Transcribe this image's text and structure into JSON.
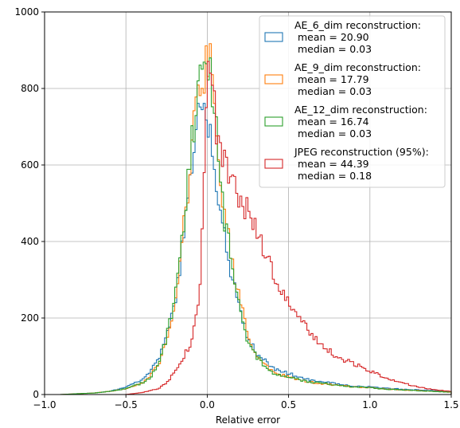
{
  "chart_data": {
    "type": "histogram",
    "xlabel": "Relative error",
    "ylabel": "",
    "title": "",
    "xlim": [
      -1.0,
      1.5
    ],
    "ylim": [
      0,
      1000
    ],
    "x_ticks": [
      -1.0,
      -0.5,
      0.0,
      0.5,
      1.0,
      1.5
    ],
    "x_tick_labels": [
      "−1.0",
      "−0.5",
      "0.0",
      "0.5",
      "1.0",
      "1.5"
    ],
    "y_ticks": [
      0,
      200,
      400,
      600,
      800,
      1000
    ],
    "y_tick_labels": [
      "0",
      "200",
      "400",
      "600",
      "800",
      "1000"
    ],
    "grid": true,
    "legend_position": "top-right",
    "legend": [
      {
        "title": "AE_6_dim reconstruction:",
        "mean": " mean = 20.90",
        "median": " median = 0.03"
      },
      {
        "title": "AE_9_dim reconstruction:",
        "mean": " mean = 17.79",
        "median": " median = 0.03"
      },
      {
        "title": "AE_12_dim reconstruction:",
        "mean": " mean = 16.74",
        "median": " median = 0.03"
      },
      {
        "title": "JPEG reconstruction (95%):",
        "mean": " mean = 44.39",
        "median": " median = 0.18"
      }
    ],
    "series": [
      {
        "color": "#1f77b4",
        "points": [
          [
            -0.9,
            0
          ],
          [
            -0.8,
            2
          ],
          [
            -0.7,
            4
          ],
          [
            -0.6,
            8
          ],
          [
            -0.5,
            20
          ],
          [
            -0.4,
            40
          ],
          [
            -0.35,
            60
          ],
          [
            -0.3,
            90
          ],
          [
            -0.25,
            150
          ],
          [
            -0.2,
            230
          ],
          [
            -0.15,
            400
          ],
          [
            -0.12,
            490
          ],
          [
            -0.1,
            560
          ],
          [
            -0.08,
            640
          ],
          [
            -0.06,
            740
          ],
          [
            -0.03,
            745
          ],
          [
            0.0,
            700
          ],
          [
            0.02,
            690
          ],
          [
            0.04,
            620
          ],
          [
            0.06,
            560
          ],
          [
            0.08,
            500
          ],
          [
            0.1,
            420
          ],
          [
            0.15,
            300
          ],
          [
            0.2,
            230
          ],
          [
            0.25,
            150
          ],
          [
            0.3,
            110
          ],
          [
            0.35,
            90
          ],
          [
            0.4,
            70
          ],
          [
            0.5,
            55
          ],
          [
            0.6,
            40
          ],
          [
            0.7,
            35
          ],
          [
            0.8,
            28
          ],
          [
            0.9,
            22
          ],
          [
            1.0,
            20
          ],
          [
            1.1,
            16
          ],
          [
            1.2,
            14
          ],
          [
            1.3,
            12
          ],
          [
            1.4,
            10
          ],
          [
            1.5,
            8
          ]
        ]
      },
      {
        "color": "#ff7f0e",
        "points": [
          [
            -0.9,
            0
          ],
          [
            -0.8,
            2
          ],
          [
            -0.7,
            4
          ],
          [
            -0.6,
            8
          ],
          [
            -0.5,
            15
          ],
          [
            -0.4,
            30
          ],
          [
            -0.35,
            50
          ],
          [
            -0.3,
            80
          ],
          [
            -0.25,
            140
          ],
          [
            -0.2,
            230
          ],
          [
            -0.15,
            410
          ],
          [
            -0.12,
            520
          ],
          [
            -0.1,
            620
          ],
          [
            -0.08,
            700
          ],
          [
            -0.06,
            780
          ],
          [
            -0.03,
            840
          ],
          [
            0.0,
            870
          ],
          [
            0.02,
            880
          ],
          [
            0.04,
            780
          ],
          [
            0.06,
            700
          ],
          [
            0.08,
            560
          ],
          [
            0.1,
            500
          ],
          [
            0.15,
            350
          ],
          [
            0.2,
            250
          ],
          [
            0.25,
            150
          ],
          [
            0.3,
            100
          ],
          [
            0.35,
            80
          ],
          [
            0.4,
            60
          ],
          [
            0.5,
            45
          ],
          [
            0.6,
            35
          ],
          [
            0.7,
            28
          ],
          [
            0.8,
            24
          ],
          [
            0.9,
            20
          ],
          [
            1.0,
            18
          ],
          [
            1.1,
            14
          ],
          [
            1.2,
            12
          ],
          [
            1.3,
            10
          ],
          [
            1.4,
            8
          ],
          [
            1.5,
            6
          ]
        ]
      },
      {
        "color": "#2ca02c",
        "points": [
          [
            -0.9,
            0
          ],
          [
            -0.8,
            2
          ],
          [
            -0.7,
            4
          ],
          [
            -0.6,
            8
          ],
          [
            -0.5,
            15
          ],
          [
            -0.4,
            30
          ],
          [
            -0.35,
            45
          ],
          [
            -0.3,
            80
          ],
          [
            -0.25,
            150
          ],
          [
            -0.2,
            240
          ],
          [
            -0.15,
            420
          ],
          [
            -0.12,
            540
          ],
          [
            -0.1,
            640
          ],
          [
            -0.08,
            720
          ],
          [
            -0.06,
            800
          ],
          [
            -0.03,
            880
          ],
          [
            0.0,
            905
          ],
          [
            0.02,
            860
          ],
          [
            0.04,
            760
          ],
          [
            0.06,
            660
          ],
          [
            0.08,
            560
          ],
          [
            0.1,
            480
          ],
          [
            0.15,
            350
          ],
          [
            0.2,
            230
          ],
          [
            0.25,
            140
          ],
          [
            0.3,
            100
          ],
          [
            0.35,
            75
          ],
          [
            0.4,
            55
          ],
          [
            0.5,
            45
          ],
          [
            0.6,
            35
          ],
          [
            0.7,
            30
          ],
          [
            0.8,
            25
          ],
          [
            0.9,
            20
          ],
          [
            1.0,
            18
          ],
          [
            1.1,
            14
          ],
          [
            1.2,
            12
          ],
          [
            1.3,
            10
          ],
          [
            1.4,
            8
          ],
          [
            1.5,
            6
          ]
        ]
      },
      {
        "color": "#d62728",
        "points": [
          [
            -0.9,
            0
          ],
          [
            -0.5,
            0
          ],
          [
            -0.4,
            5
          ],
          [
            -0.3,
            15
          ],
          [
            -0.25,
            30
          ],
          [
            -0.2,
            60
          ],
          [
            -0.15,
            90
          ],
          [
            -0.1,
            140
          ],
          [
            -0.05,
            250
          ],
          [
            -0.03,
            450
          ],
          [
            -0.01,
            700
          ],
          [
            0.01,
            880
          ],
          [
            0.03,
            800
          ],
          [
            0.06,
            680
          ],
          [
            0.08,
            650
          ],
          [
            0.1,
            620
          ],
          [
            0.12,
            600
          ],
          [
            0.15,
            570
          ],
          [
            0.2,
            520
          ],
          [
            0.25,
            480
          ],
          [
            0.3,
            430
          ],
          [
            0.35,
            380
          ],
          [
            0.4,
            320
          ],
          [
            0.45,
            280
          ],
          [
            0.5,
            230
          ],
          [
            0.55,
            200
          ],
          [
            0.6,
            180
          ],
          [
            0.7,
            130
          ],
          [
            0.8,
            100
          ],
          [
            0.9,
            80
          ],
          [
            1.0,
            60
          ],
          [
            1.1,
            45
          ],
          [
            1.2,
            30
          ],
          [
            1.3,
            20
          ],
          [
            1.4,
            12
          ],
          [
            1.5,
            8
          ]
        ]
      }
    ]
  }
}
